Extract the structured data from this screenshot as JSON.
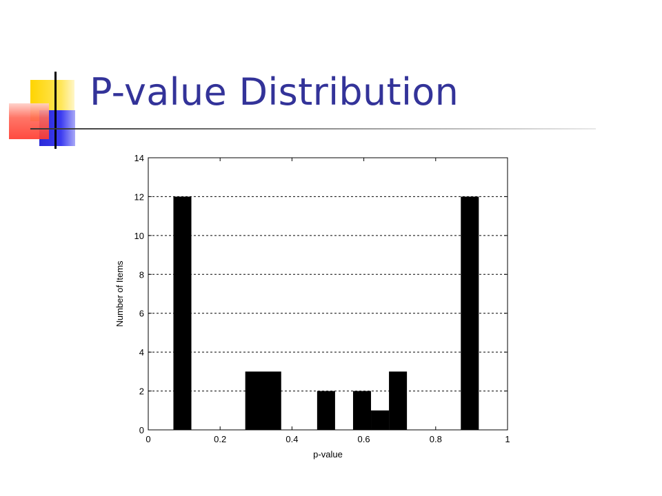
{
  "slide": {
    "title": "P-value Distribution"
  },
  "chart_data": {
    "type": "bar",
    "title": "",
    "xlabel": "p-value",
    "ylabel": "Number of Items",
    "xlim": [
      0,
      1
    ],
    "ylim": [
      0,
      14
    ],
    "xticks": [
      "0",
      "0.2",
      "0.4",
      "0.6",
      "0.8",
      "1"
    ],
    "yticks": [
      "0",
      "2",
      "4",
      "6",
      "8",
      "10",
      "12",
      "14"
    ],
    "grid": "horizontal dashed",
    "bar_color": "#000000",
    "bins": [
      {
        "x0": 0.07,
        "x1": 0.12,
        "value": 12
      },
      {
        "x0": 0.27,
        "x1": 0.37,
        "value": 3
      },
      {
        "x0": 0.47,
        "x1": 0.52,
        "value": 2
      },
      {
        "x0": 0.57,
        "x1": 0.62,
        "value": 2
      },
      {
        "x0": 0.62,
        "x1": 0.67,
        "value": 1
      },
      {
        "x0": 0.67,
        "x1": 0.72,
        "value": 3
      },
      {
        "x0": 0.87,
        "x1": 0.92,
        "value": 12
      }
    ]
  }
}
